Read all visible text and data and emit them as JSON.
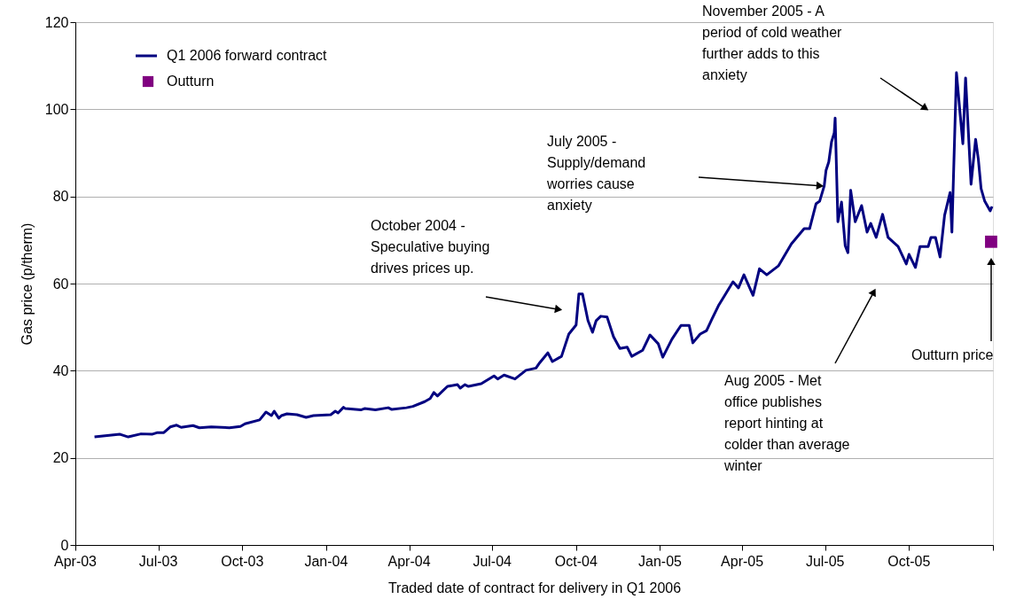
{
  "chart_data": {
    "type": "line",
    "xlabel": "Traded date of contract for delivery in Q1 2006",
    "ylabel": "Gas price (p/therm)",
    "xlim": [
      "2003-04-01",
      "2006-01-01"
    ],
    "xticks": [
      {
        "value": "2003-04-01",
        "label": "Apr-03"
      },
      {
        "value": "2003-07-01",
        "label": "Jul-03"
      },
      {
        "value": "2003-10-01",
        "label": "Oct-03"
      },
      {
        "value": "2004-01-01",
        "label": "Jan-04"
      },
      {
        "value": "2004-04-01",
        "label": "Apr-04"
      },
      {
        "value": "2004-07-01",
        "label": "Jul-04"
      },
      {
        "value": "2004-10-01",
        "label": "Oct-04"
      },
      {
        "value": "2005-01-01",
        "label": "Jan-05"
      },
      {
        "value": "2005-04-01",
        "label": "Apr-05"
      },
      {
        "value": "2005-07-01",
        "label": "Jul-05"
      },
      {
        "value": "2005-10-01",
        "label": "Oct-05"
      },
      {
        "value": "2006-01-01",
        "label": null
      }
    ],
    "ylim": [
      0,
      120
    ],
    "yticks": [
      0,
      20,
      40,
      60,
      80,
      100,
      120
    ],
    "grid": "y",
    "legend": "top left",
    "line_style": "solid",
    "series": [
      {
        "name": "Q1 2006 forward contract",
        "color": "#000080",
        "x": [
          "2003-04-22",
          "2003-05-20",
          "2003-05-29",
          "2003-06-12",
          "2003-06-24",
          "2003-06-30",
          "2003-07-07",
          "2003-07-14",
          "2003-07-21",
          "2003-07-26",
          "2003-08-08",
          "2003-08-15",
          "2003-08-28",
          "2003-09-17",
          "2003-09-29",
          "2003-10-04",
          "2003-10-20",
          "2003-10-27",
          "2003-11-02",
          "2003-11-05",
          "2003-11-10",
          "2003-11-13",
          "2003-11-19",
          "2003-11-30",
          "2003-12-10",
          "2003-12-18",
          "2004-01-06",
          "2004-01-11",
          "2004-01-14",
          "2004-01-20",
          "2004-01-22",
          "2004-02-08",
          "2004-02-12",
          "2004-02-24",
          "2004-03-09",
          "2004-03-13",
          "2004-03-29",
          "2004-04-05",
          "2004-04-18",
          "2004-04-24",
          "2004-04-28",
          "2004-05-02",
          "2004-05-08",
          "2004-05-13",
          "2004-05-24",
          "2004-05-27",
          "2004-06-01",
          "2004-06-05",
          "2004-06-19",
          "2004-07-03",
          "2004-07-07",
          "2004-07-14",
          "2004-07-26",
          "2004-08-07",
          "2004-08-18",
          "2004-08-22",
          "2004-08-31",
          "2004-09-05",
          "2004-09-15",
          "2004-09-23",
          "2004-10-01",
          "2004-10-04",
          "2004-10-08",
          "2004-10-14",
          "2004-10-19",
          "2004-10-23",
          "2004-10-28",
          "2004-11-04",
          "2004-11-11",
          "2004-11-18",
          "2004-11-26",
          "2004-12-01",
          "2004-12-13",
          "2004-12-21",
          "2004-12-30",
          "2005-01-04",
          "2005-01-14",
          "2005-01-24",
          "2005-02-02",
          "2005-02-06",
          "2005-02-14",
          "2005-02-21",
          "2005-02-27",
          "2005-03-06",
          "2005-03-13",
          "2005-03-22",
          "2005-03-28",
          "2005-04-03",
          "2005-04-13",
          "2005-04-20",
          "2005-04-28",
          "2005-05-11",
          "2005-05-25",
          "2005-06-08",
          "2005-06-14",
          "2005-06-21",
          "2005-06-25",
          "2005-06-30",
          "2005-07-02",
          "2005-07-05",
          "2005-07-08",
          "2005-07-11",
          "2005-07-12",
          "2005-07-15",
          "2005-07-19",
          "2005-07-23",
          "2005-07-26",
          "2005-07-29",
          "2005-08-03",
          "2005-08-10",
          "2005-08-16",
          "2005-08-20",
          "2005-08-26",
          "2005-09-02",
          "2005-09-08",
          "2005-09-19",
          "2005-09-28",
          "2005-10-01",
          "2005-10-08",
          "2005-10-13",
          "2005-10-22",
          "2005-10-25",
          "2005-10-30",
          "2005-11-04",
          "2005-11-09",
          "2005-11-15",
          "2005-11-17",
          "2005-11-22",
          "2005-11-26",
          "2005-11-29",
          "2005-12-02",
          "2005-12-08",
          "2005-12-13",
          "2005-12-16",
          "2005-12-19",
          "2005-12-23",
          "2005-12-29",
          "2005-12-31"
        ],
        "values": [
          24.8,
          25.4,
          24.8,
          25.5,
          25.4,
          25.8,
          25.8,
          27.1,
          27.5,
          27.0,
          27.4,
          26.9,
          27.1,
          26.9,
          27.2,
          27.8,
          28.7,
          30.5,
          29.7,
          30.7,
          29.1,
          29.7,
          30.1,
          29.9,
          29.3,
          29.7,
          29.9,
          30.7,
          30.3,
          31.6,
          31.3,
          31.0,
          31.3,
          31.0,
          31.5,
          31.1,
          31.5,
          31.8,
          32.9,
          33.6,
          35.0,
          34.2,
          35.4,
          36.4,
          36.8,
          36.0,
          36.8,
          36.4,
          37.0,
          38.8,
          38.1,
          39.0,
          38.1,
          40.1,
          40.6,
          41.8,
          44.1,
          42.1,
          43.3,
          48.4,
          50.5,
          57.6,
          57.6,
          51.5,
          48.8,
          51.5,
          52.5,
          52.3,
          47.8,
          45.1,
          45.4,
          43.3,
          44.7,
          48.2,
          46.2,
          43.1,
          47.2,
          50.4,
          50.4,
          46.4,
          48.4,
          49.2,
          51.9,
          54.9,
          57.3,
          60.4,
          59.0,
          62.0,
          57.3,
          63.4,
          62.0,
          64.1,
          69.1,
          72.6,
          72.6,
          78.3,
          78.9,
          82.4,
          86.0,
          87.9,
          92.5,
          94.6,
          98.0,
          74.2,
          78.7,
          68.7,
          67.1,
          81.4,
          74.2,
          77.9,
          71.8,
          73.8,
          70.6,
          75.9,
          70.6,
          68.5,
          64.5,
          66.7,
          63.7,
          68.5,
          68.5,
          70.6,
          70.6,
          66.1,
          75.7,
          80.9,
          71.8,
          108.4,
          99.0,
          92.1,
          107.2,
          82.8,
          93.1,
          88.5,
          81.8,
          78.9,
          76.7,
          77.7
        ]
      },
      {
        "type": "scatter",
        "name": "Outturn",
        "color": "#800080",
        "marker": "square",
        "x": [
          "2005-12-30"
        ],
        "values": [
          69.6
        ]
      }
    ],
    "annotations": [
      "October 2004 -\nSpeculative buying\ndrives prices up.",
      "July 2005 -\nSupply/demand\nworries cause\nanxiety",
      "November 2005 - A\nperiod of cold weather\nfurther adds to this\nanxiety",
      "Aug 2005 - Met\noffice publishes\nreport hinting at\ncolder than average\nwinter",
      "Outturn price"
    ]
  }
}
